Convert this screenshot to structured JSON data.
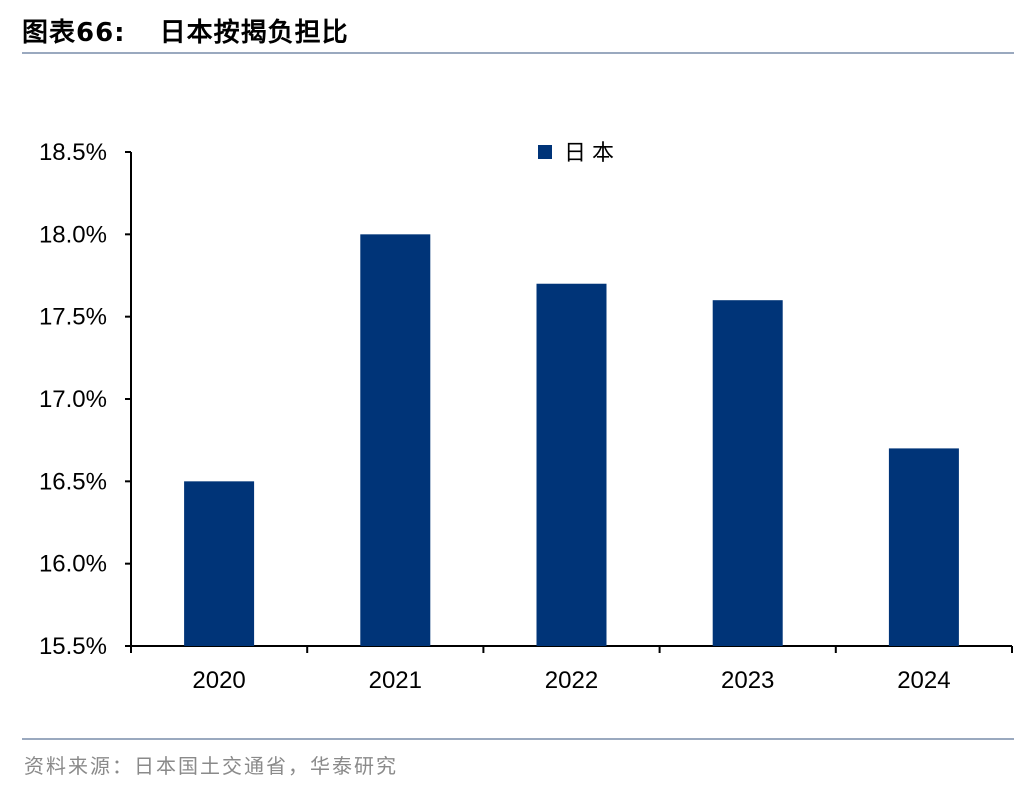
{
  "header": {
    "label": "图表66:",
    "title": "日本按揭负担比"
  },
  "source": "资料来源：日本国土交通省，华泰研究",
  "chart_data": {
    "type": "bar",
    "categories": [
      "2020",
      "2021",
      "2022",
      "2023",
      "2024"
    ],
    "series": [
      {
        "name": "日本",
        "values": [
          16.5,
          18.0,
          17.7,
          17.6,
          16.7
        ],
        "color": "#003478"
      }
    ],
    "y_ticks": [
      "15.5%",
      "16.0%",
      "16.5%",
      "17.0%",
      "17.5%",
      "18.0%",
      "18.5%"
    ],
    "ylim": [
      15.5,
      18.5
    ],
    "ytick_step": 0.5,
    "y_unit": "%",
    "grid": false,
    "legend_position": "top-center",
    "axis_color": "#000000"
  }
}
